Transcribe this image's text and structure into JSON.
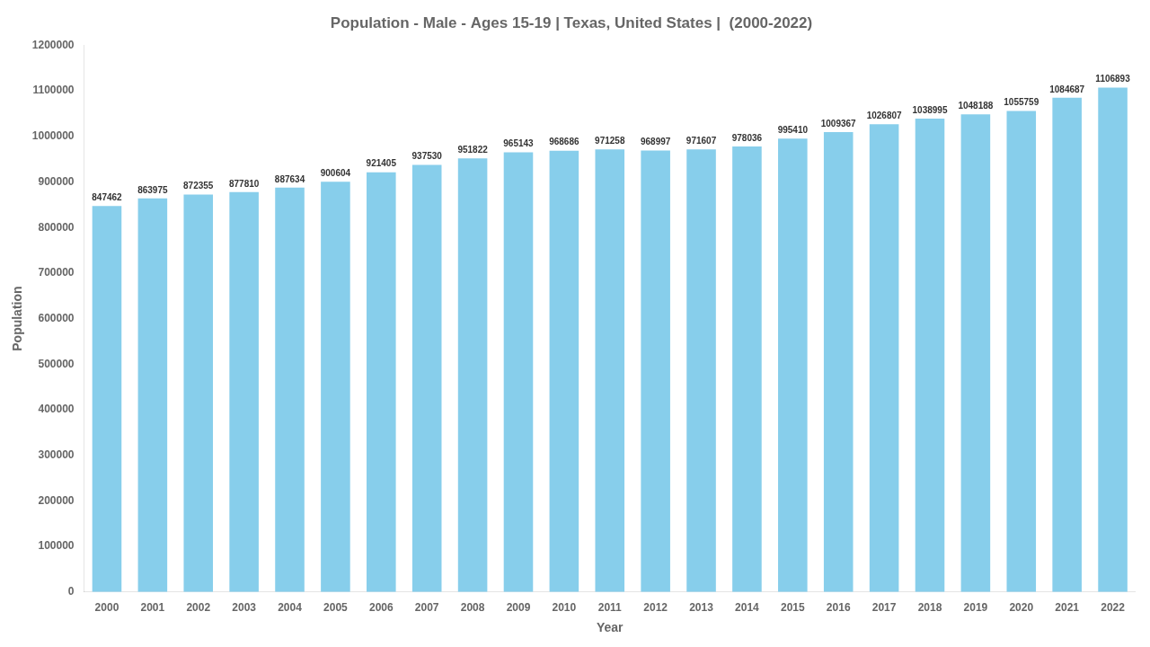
{
  "chart_data": {
    "type": "bar",
    "title": "Population - Male - Ages 15-19 | Texas, United States |  (2000-2022)",
    "x_label": "Year",
    "y_label": "Population",
    "categories": [
      "2000",
      "2001",
      "2002",
      "2003",
      "2004",
      "2005",
      "2006",
      "2007",
      "2008",
      "2009",
      "2010",
      "2011",
      "2012",
      "2013",
      "2014",
      "2015",
      "2016",
      "2017",
      "2018",
      "2019",
      "2020",
      "2021",
      "2022"
    ],
    "values": [
      847462,
      863975,
      872355,
      877810,
      887634,
      900604,
      921405,
      937530,
      951822,
      965143,
      968686,
      971258,
      968997,
      971607,
      978036,
      995410,
      1009367,
      1026807,
      1038995,
      1048188,
      1055759,
      1084687,
      1106893
    ],
    "color": "#87CEEB",
    "ylim": [
      0,
      1200000
    ],
    "yticks": [
      0,
      100000,
      200000,
      300000,
      400000,
      500000,
      600000,
      700000,
      800000,
      900000,
      1000000,
      1100000,
      1200000
    ],
    "grid": false,
    "data_labels": true
  }
}
